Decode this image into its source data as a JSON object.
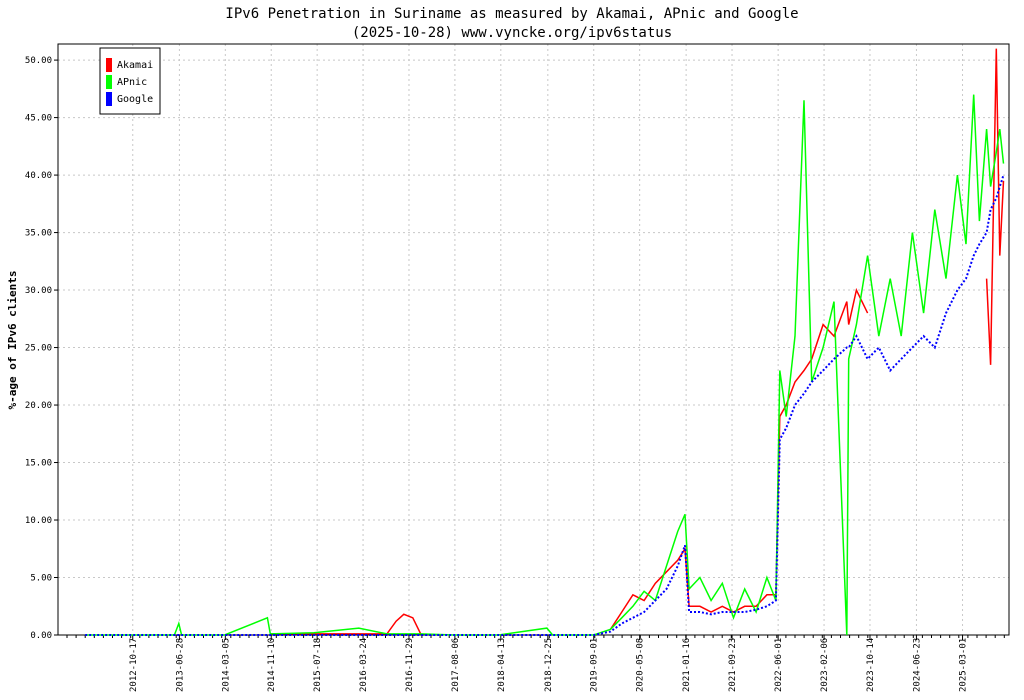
{
  "chart_data": {
    "type": "line",
    "title": "IPv6 Penetration in Suriname as measured by Akamai, APnic and Google",
    "subtitle": "(2025-10-28) www.vyncke.org/ipv6status",
    "y_label": "%-age of IPv6 clients",
    "x": [
      "2012-02-01",
      "2012-10-01",
      "2013-06-01",
      "2013-06-25",
      "2013-07-10",
      "2014-03-01",
      "2014-10-20",
      "2014-11-05",
      "2015-07-01",
      "2016-03-01",
      "2016-08-01",
      "2016-09-20",
      "2016-11-01",
      "2016-12-20",
      "2017-02-01",
      "2017-08-01",
      "2018-04-01",
      "2018-12-20",
      "2019-01-20",
      "2019-09-01",
      "2019-12-01",
      "2020-02-01",
      "2020-04-01",
      "2020-06-01",
      "2020-08-01",
      "2020-10-01",
      "2020-12-01",
      "2021-01-10",
      "2021-02-01",
      "2021-04-01",
      "2021-06-01",
      "2021-08-01",
      "2021-10-01",
      "2021-12-01",
      "2022-02-01",
      "2022-04-01",
      "2022-05-20",
      "2022-06-10",
      "2022-07-15",
      "2022-09-01",
      "2022-10-20",
      "2022-12-01",
      "2023-02-01",
      "2023-04-01",
      "2023-06-10",
      "2023-06-20",
      "2023-08-01",
      "2023-10-01",
      "2023-12-01",
      "2024-02-01",
      "2024-04-01",
      "2024-06-01",
      "2024-08-01",
      "2024-10-01",
      "2024-12-01",
      "2025-02-01",
      "2025-03-20",
      "2025-05-01",
      "2025-06-01",
      "2025-07-10",
      "2025-08-01",
      "2025-09-01",
      "2025-09-20",
      "2025-10-10"
    ],
    "series": [
      {
        "name": "Akamai",
        "color": "#ff0000",
        "values": [
          null,
          null,
          null,
          null,
          null,
          null,
          null,
          0.1,
          0.1,
          0.1,
          0.1,
          1.2,
          1.8,
          1.5,
          0.1,
          null,
          null,
          null,
          null,
          null,
          0.5,
          2.0,
          3.5,
          3.0,
          4.5,
          5.5,
          6.5,
          7.5,
          2.5,
          2.5,
          2.0,
          2.5,
          2.0,
          2.5,
          2.5,
          3.5,
          3.5,
          19.0,
          20.0,
          22.0,
          23.0,
          24.0,
          27.0,
          26.0,
          29.0,
          27.0,
          30.0,
          28.0,
          null,
          null,
          null,
          null,
          null,
          null,
          null,
          null,
          null,
          null,
          null,
          31.0,
          23.5,
          51.0,
          33.0,
          39.5
        ]
      },
      {
        "name": "APnic",
        "color": "#00ff00",
        "values": [
          0,
          0,
          0,
          1.0,
          0,
          0,
          1.5,
          0.1,
          0.2,
          0.6,
          0.1,
          0.1,
          0.1,
          0.1,
          0.1,
          0,
          0,
          0.6,
          0,
          0,
          0.5,
          1.5,
          2.5,
          3.8,
          3.0,
          6.0,
          9.0,
          10.5,
          4.0,
          5.0,
          3.0,
          4.5,
          1.5,
          4.0,
          2.0,
          5.0,
          3.0,
          23.0,
          19.0,
          26.0,
          46.5,
          22.0,
          25.0,
          29.0,
          0.0,
          24.0,
          27.0,
          33.0,
          26.0,
          31.0,
          26.0,
          35.0,
          28.0,
          37.0,
          31.0,
          40.0,
          34.0,
          47.0,
          36.0,
          44.0,
          39.0,
          42.0,
          44.0,
          41.0
        ]
      },
      {
        "name": "Google",
        "color": "#0000ff",
        "values": [
          0,
          0,
          0,
          0,
          0,
          0,
          0,
          0,
          0,
          0,
          0,
          0,
          0,
          0,
          0,
          0,
          0,
          0,
          0,
          0,
          0.3,
          1.0,
          1.5,
          2.0,
          3.0,
          4.0,
          6.0,
          7.8,
          2.0,
          2.0,
          1.8,
          2.0,
          2.0,
          2.0,
          2.2,
          2.5,
          3.0,
          17.0,
          18.0,
          20.0,
          21.0,
          22.0,
          23.0,
          24.0,
          25.0,
          25.0,
          26.0,
          24.0,
          25.0,
          23.0,
          24.0,
          25.0,
          26.0,
          25.0,
          28.0,
          30.0,
          31.0,
          33.0,
          34.0,
          35.0,
          37.0,
          38.0,
          39.0,
          40.0
        ]
      }
    ],
    "xlim": [
      "2011-09-06",
      "2025-11-09"
    ],
    "xticks": [
      "2012-10-17",
      "2013-06-28",
      "2014-03-05",
      "2014-11-10",
      "2015-07-18",
      "2016-03-24",
      "2016-11-29",
      "2017-08-06",
      "2018-04-13",
      "2018-12-25",
      "2019-09-01",
      "2020-05-08",
      "2021-01-16",
      "2021-09-23",
      "2022-06-01",
      "2023-02-06",
      "2023-10-14",
      "2024-06-23",
      "2025-03-01"
    ],
    "ylim": [
      0,
      51.4
    ],
    "yticks": [
      {
        "value": 0,
        "label": "0.00"
      },
      {
        "value": 5,
        "label": "5.00"
      },
      {
        "value": 10,
        "label": "10.00"
      },
      {
        "value": 15,
        "label": "15.00"
      },
      {
        "value": 20,
        "label": "20.00"
      },
      {
        "value": 25,
        "label": "25.00"
      },
      {
        "value": 30,
        "label": "30.00"
      },
      {
        "value": 35,
        "label": "35.00"
      },
      {
        "value": 40,
        "label": "40.00"
      },
      {
        "value": 45,
        "label": "45.00"
      },
      {
        "value": 50,
        "label": "50.00"
      }
    ],
    "grid": true,
    "legend": "upper left"
  }
}
